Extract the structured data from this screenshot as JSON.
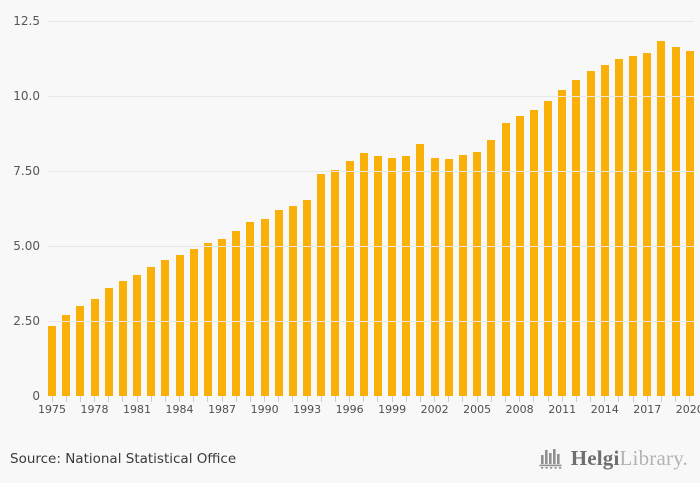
{
  "chart_data": {
    "type": "bar",
    "title": "",
    "xlabel": "",
    "ylabel": "",
    "categories": [
      1975,
      1976,
      1977,
      1978,
      1979,
      1980,
      1981,
      1982,
      1983,
      1984,
      1985,
      1986,
      1987,
      1988,
      1989,
      1990,
      1991,
      1992,
      1993,
      1994,
      1995,
      1996,
      1997,
      1998,
      1999,
      2000,
      2001,
      2002,
      2003,
      2004,
      2005,
      2006,
      2007,
      2008,
      2009,
      2010,
      2011,
      2012,
      2013,
      2014,
      2015,
      2016,
      2017,
      2018,
      2019,
      2020
    ],
    "values": [
      2.35,
      2.7,
      3.0,
      3.25,
      3.6,
      3.85,
      4.05,
      4.3,
      4.55,
      4.7,
      4.9,
      5.1,
      5.25,
      5.5,
      5.8,
      5.9,
      6.2,
      6.35,
      6.55,
      7.4,
      7.55,
      7.85,
      8.1,
      8.0,
      7.95,
      8.0,
      8.4,
      7.95,
      7.9,
      8.05,
      8.15,
      8.55,
      9.1,
      9.35,
      9.55,
      9.85,
      10.2,
      10.55,
      10.85,
      11.05,
      11.25,
      11.35,
      11.45,
      11.85,
      11.65,
      11.5
    ],
    "ylim": [
      0,
      12.5
    ],
    "yticks": [
      {
        "label": "12.5",
        "value": 12.5
      },
      {
        "label": "10.0",
        "value": 10.0
      },
      {
        "label": "7.50",
        "value": 7.5
      },
      {
        "label": "5.00",
        "value": 5.0
      },
      {
        "label": "2.50",
        "value": 2.5
      },
      {
        "label": "0",
        "value": 0
      }
    ],
    "xtick_labeled_years": [
      1975,
      1978,
      1981,
      1984,
      1987,
      1990,
      1993,
      1996,
      1999,
      2002,
      2005,
      2008,
      2011,
      2014,
      2017,
      2020
    ],
    "grid": "horizontal",
    "legend": "none",
    "bar_color": "#f9b008",
    "gridline_color": "#e7e7e7",
    "tick_color": "#c6cede",
    "background_color": "#f8f8f8"
  },
  "footer": {
    "source": "Source: National Statistical Office"
  },
  "logo": {
    "brand_bold": "Helgi",
    "brand_light": "Library.",
    "icon": "bar-chart-logo-icon"
  }
}
